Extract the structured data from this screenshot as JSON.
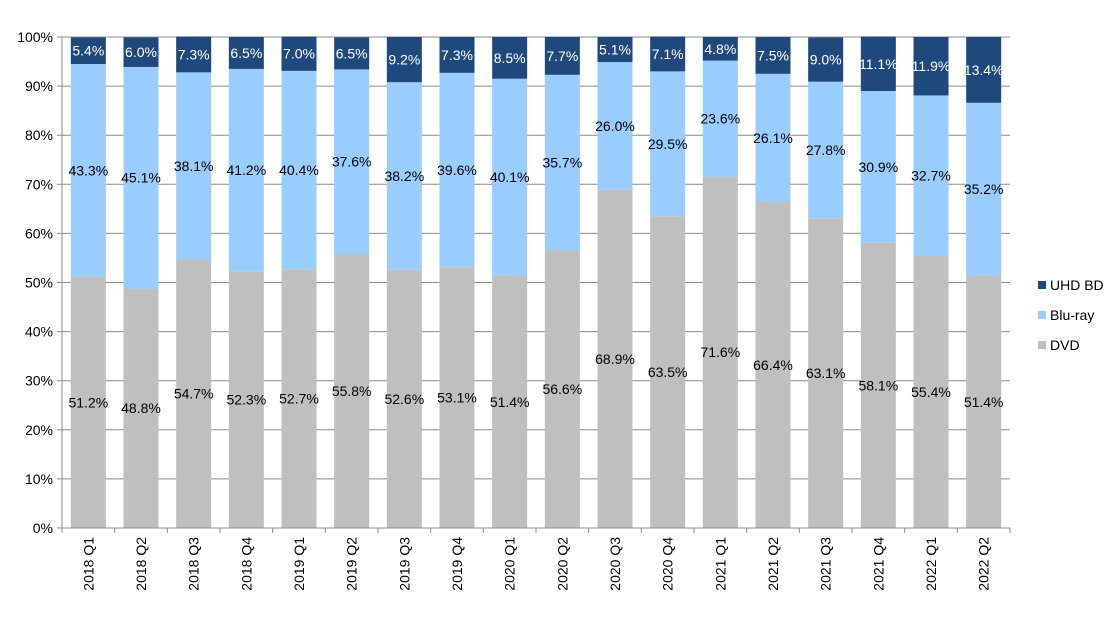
{
  "chart_data": {
    "type": "bar",
    "stacked": true,
    "percent": true,
    "categories": [
      "2018 Q1",
      "2018 Q2",
      "2018 Q3",
      "2018 Q4",
      "2019 Q1",
      "2019 Q2",
      "2019 Q3",
      "2019 Q4",
      "2020 Q1",
      "2020 Q2",
      "2020 Q3",
      "2020 Q4",
      "2021 Q1",
      "2021 Q2",
      "2021 Q3",
      "2021 Q4",
      "2022 Q1",
      "2022 Q2"
    ],
    "series": [
      {
        "name": "DVD",
        "color": "#bfbfbf",
        "label_color": "#000000",
        "values": [
          51.2,
          48.8,
          54.7,
          52.3,
          52.7,
          55.8,
          52.6,
          53.1,
          51.4,
          56.6,
          68.9,
          63.5,
          71.6,
          66.4,
          63.1,
          58.1,
          55.4,
          51.4
        ],
        "labels": [
          "51.2%",
          "48.8%",
          "54.7%",
          "52.3%",
          "52.7%",
          "55.8%",
          "52.6%",
          "53.1%",
          "51.4%",
          "56.6%",
          "68.9%",
          "63.5%",
          "71.6%",
          "66.4%",
          "63.1%",
          "58.1%",
          "55.4%",
          "51.4%"
        ]
      },
      {
        "name": "Blu-ray",
        "color": "#99ccff",
        "label_color": "#000000",
        "values": [
          43.3,
          45.1,
          38.1,
          41.2,
          40.4,
          37.6,
          38.2,
          39.6,
          40.1,
          35.7,
          26.0,
          29.5,
          23.6,
          26.1,
          27.8,
          30.9,
          32.7,
          35.2
        ],
        "labels": [
          "43.3%",
          "45.1%",
          "38.1%",
          "41.2%",
          "40.4%",
          "37.6%",
          "38.2%",
          "39.6%",
          "40.1%",
          "35.7%",
          "26.0%",
          "29.5%",
          "23.6%",
          "26.1%",
          "27.8%",
          "30.9%",
          "32.7%",
          "35.2%"
        ]
      },
      {
        "name": "UHD BD",
        "color": "#1f497d",
        "label_color": "#ffffff",
        "values": [
          5.4,
          6.0,
          7.3,
          6.5,
          7.0,
          6.5,
          9.2,
          7.3,
          8.5,
          7.7,
          5.1,
          7.1,
          4.8,
          7.5,
          9.0,
          11.1,
          11.9,
          13.4
        ],
        "labels": [
          "5.4%",
          "6.0%",
          "7.3%",
          "6.5%",
          "7.0%",
          "6.5%",
          "9.2%",
          "7.3%",
          "8.5%",
          "7.7%",
          "5.1%",
          "7.1%",
          "4.8%",
          "7.5%",
          "9.0%",
          "11.1%",
          "11.9%",
          "13.4%"
        ]
      }
    ],
    "y_ticks": [
      "0%",
      "10%",
      "20%",
      "30%",
      "40%",
      "50%",
      "60%",
      "70%",
      "80%",
      "90%",
      "100%"
    ],
    "ylim": [
      0,
      100
    ],
    "grid": true,
    "legend_position": "right",
    "legend_order": [
      "UHD BD",
      "Blu-ray",
      "DVD"
    ],
    "title": "",
    "xlabel": "",
    "ylabel": ""
  }
}
